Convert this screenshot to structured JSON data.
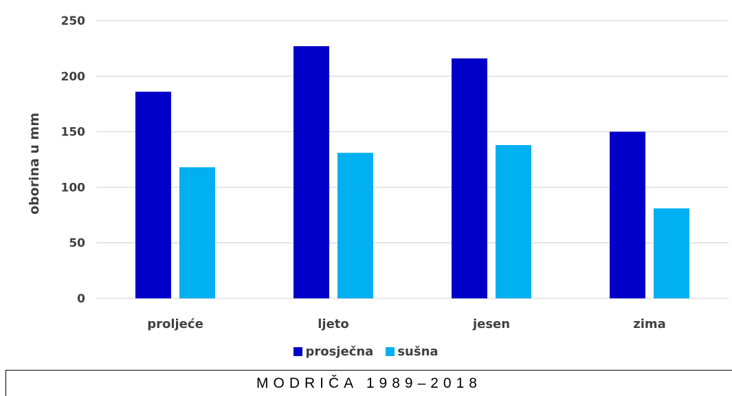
{
  "chart_data": {
    "type": "bar",
    "categories": [
      "proljeće",
      "ljeto",
      "jesen",
      "zima"
    ],
    "series": [
      {
        "name": "prosječna",
        "color": "#0000c8",
        "values": [
          186,
          227,
          216,
          150
        ]
      },
      {
        "name": "sušna",
        "color": "#00b0f0",
        "values": [
          118,
          131,
          138,
          81
        ]
      }
    ],
    "ylabel": "oborina u mm",
    "xlabel": "",
    "ylim": [
      0,
      250
    ],
    "yticks": [
      0,
      50,
      100,
      150,
      200,
      250
    ],
    "grid": true,
    "legend_position": "bottom"
  },
  "caption": "MODRIČA 1989–2018",
  "colors": {
    "gridline": "#d9d9d9",
    "text": "#404040"
  }
}
